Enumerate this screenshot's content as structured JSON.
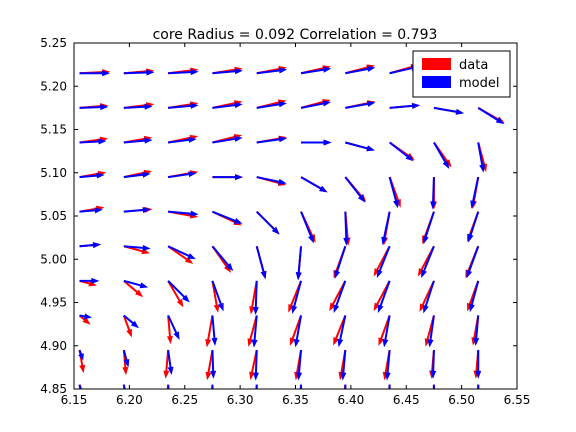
{
  "chart_data": {
    "type": "quiver",
    "title": "core Radius = 0.092 Correlation = 0.793",
    "xlabel": "",
    "ylabel": "",
    "xlim": [
      6.15,
      6.55
    ],
    "ylim": [
      4.85,
      5.25
    ],
    "xticks": [
      "6.15",
      "6.20",
      "6.25",
      "6.30",
      "6.35",
      "6.40",
      "6.45",
      "6.50",
      "6.55"
    ],
    "yticks": [
      "4.85",
      "4.90",
      "4.95",
      "5.00",
      "5.05",
      "5.10",
      "5.15",
      "5.20",
      "5.25"
    ],
    "grid": false,
    "legend_position": "top-right",
    "x": [
      6.155,
      6.195,
      6.235,
      6.275,
      6.315,
      6.355,
      6.395,
      6.435,
      6.475,
      6.515
    ],
    "y": [
      4.855,
      4.895,
      4.935,
      4.975,
      5.015,
      5.055,
      5.095,
      5.135,
      5.175,
      5.215
    ],
    "series": [
      {
        "name": "data",
        "color": "#ff0000",
        "angle_deg": [
          [
            70,
            80,
            95,
            95,
            95,
            95,
            95,
            95,
            92,
            92
          ],
          [
            80,
            85,
            95,
            100,
            102,
            100,
            100,
            100,
            95,
            95
          ],
          [
            40,
            70,
            85,
            100,
            105,
            110,
            112,
            110,
            105,
            100
          ],
          [
            15,
            40,
            60,
            80,
            100,
            112,
            118,
            118,
            115,
            110
          ],
          [
            -5,
            15,
            35,
            55,
            75,
            95,
            110,
            118,
            118,
            112
          ],
          [
            -10,
            -5,
            10,
            25,
            45,
            65,
            85,
            100,
            110,
            110
          ],
          [
            -10,
            -12,
            -10,
            0,
            15,
            30,
            50,
            70,
            90,
            100
          ],
          [
            -8,
            -10,
            -12,
            -14,
            -10,
            0,
            15,
            35,
            55,
            75
          ],
          [
            -5,
            -7,
            -9,
            -12,
            -14,
            -15,
            -12,
            -5,
            10,
            30
          ],
          [
            -3,
            -5,
            -7,
            -9,
            -11,
            -13,
            -15,
            -16,
            -15,
            -10
          ]
        ],
        "length_frac": [
          [
            0.7,
            0.7,
            0.75,
            0.8,
            0.8,
            0.8,
            0.8,
            0.8,
            0.75,
            0.75
          ],
          [
            0.65,
            0.7,
            0.8,
            0.85,
            0.85,
            0.85,
            0.85,
            0.85,
            0.8,
            0.8
          ],
          [
            0.4,
            0.65,
            0.8,
            0.9,
            0.9,
            0.9,
            0.9,
            0.9,
            0.9,
            0.85
          ],
          [
            0.5,
            0.7,
            0.85,
            0.9,
            0.95,
            0.95,
            0.95,
            0.95,
            0.95,
            0.9
          ],
          [
            0.6,
            0.75,
            0.85,
            0.9,
            0.95,
            0.95,
            0.95,
            0.95,
            0.95,
            0.95
          ],
          [
            0.7,
            0.8,
            0.85,
            0.9,
            0.9,
            0.95,
            0.95,
            0.95,
            0.95,
            0.9
          ],
          [
            0.75,
            0.8,
            0.85,
            0.85,
            0.85,
            0.85,
            0.9,
            0.9,
            0.9,
            0.9
          ],
          [
            0.8,
            0.8,
            0.85,
            0.85,
            0.85,
            0.85,
            0.85,
            0.85,
            0.85,
            0.85
          ],
          [
            0.8,
            0.85,
            0.85,
            0.85,
            0.85,
            0.85,
            0.85,
            0.85,
            0.85,
            0.85
          ],
          [
            0.85,
            0.85,
            0.85,
            0.85,
            0.85,
            0.85,
            0.85,
            0.85,
            0.85,
            0.85
          ]
        ]
      },
      {
        "name": "model",
        "color": "#0000ff",
        "angle_deg": [
          [
            80,
            82,
            85,
            88,
            90,
            90,
            90,
            90,
            90,
            88
          ],
          [
            70,
            75,
            82,
            88,
            92,
            95,
            95,
            95,
            92,
            90
          ],
          [
            10,
            40,
            65,
            85,
            95,
            100,
            102,
            100,
            98,
            95
          ],
          [
            0,
            15,
            45,
            70,
            92,
            105,
            110,
            110,
            108,
            105
          ],
          [
            -5,
            5,
            25,
            50,
            75,
            95,
            108,
            112,
            112,
            110
          ],
          [
            -5,
            -5,
            5,
            22,
            45,
            68,
            88,
            102,
            108,
            108
          ],
          [
            -5,
            -7,
            -8,
            0,
            12,
            30,
            52,
            75,
            92,
            102
          ],
          [
            -3,
            -5,
            -7,
            -9,
            -8,
            0,
            15,
            38,
            60,
            80
          ],
          [
            -2,
            -3,
            -5,
            -7,
            -9,
            -11,
            -10,
            -5,
            10,
            32
          ],
          [
            0,
            -2,
            -3,
            -5,
            -7,
            -9,
            -11,
            -13,
            -13,
            -10
          ]
        ],
        "length_frac": [
          [
            0.3,
            0.45,
            0.6,
            0.7,
            0.75,
            0.75,
            0.75,
            0.75,
            0.7,
            0.7
          ],
          [
            0.3,
            0.5,
            0.7,
            0.8,
            0.85,
            0.85,
            0.85,
            0.85,
            0.8,
            0.8
          ],
          [
            0.35,
            0.55,
            0.75,
            0.85,
            0.9,
            0.9,
            0.9,
            0.9,
            0.9,
            0.85
          ],
          [
            0.55,
            0.7,
            0.85,
            0.9,
            0.95,
            0.95,
            0.95,
            0.95,
            0.95,
            0.9
          ],
          [
            0.6,
            0.75,
            0.85,
            0.9,
            0.95,
            0.95,
            0.95,
            0.95,
            0.95,
            0.95
          ],
          [
            0.65,
            0.75,
            0.85,
            0.9,
            0.9,
            0.95,
            0.95,
            0.95,
            0.95,
            0.9
          ],
          [
            0.7,
            0.75,
            0.8,
            0.85,
            0.85,
            0.85,
            0.9,
            0.9,
            0.9,
            0.9
          ],
          [
            0.75,
            0.8,
            0.8,
            0.85,
            0.85,
            0.85,
            0.85,
            0.85,
            0.85,
            0.85
          ],
          [
            0.8,
            0.8,
            0.85,
            0.85,
            0.85,
            0.85,
            0.85,
            0.85,
            0.85,
            0.85
          ],
          [
            0.85,
            0.85,
            0.85,
            0.85,
            0.85,
            0.85,
            0.85,
            0.85,
            0.85,
            0.85
          ]
        ]
      }
    ]
  }
}
